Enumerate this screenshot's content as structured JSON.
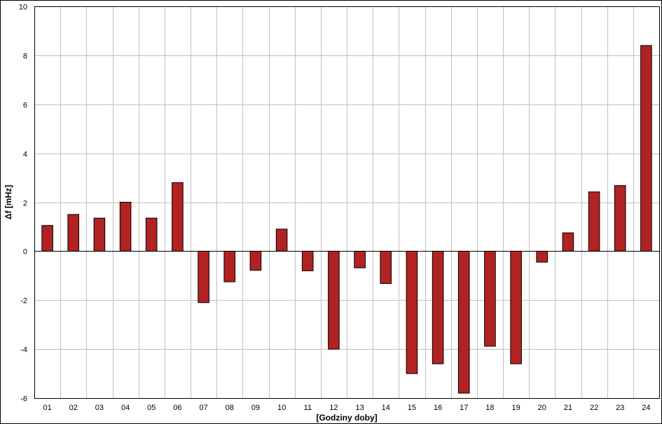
{
  "chart_data": {
    "type": "bar",
    "categories": [
      "01",
      "02",
      "03",
      "04",
      "05",
      "06",
      "07",
      "08",
      "09",
      "10",
      "11",
      "12",
      "13",
      "14",
      "15",
      "16",
      "17",
      "18",
      "19",
      "20",
      "21",
      "22",
      "23",
      "24"
    ],
    "values": [
      1.05,
      1.5,
      1.35,
      2.0,
      1.35,
      2.8,
      -2.1,
      -1.25,
      -0.78,
      0.9,
      -0.8,
      -4.0,
      -0.68,
      -1.32,
      -5.0,
      -4.6,
      -5.8,
      -3.88,
      -4.6,
      -0.45,
      0.75,
      2.42,
      2.68,
      8.4
    ],
    "title": "",
    "xlabel": "[Godziny doby]",
    "ylabel": "Δf [mHz]",
    "ylim": [
      -6,
      10
    ],
    "yticks": [
      "-6",
      "-4",
      "-2",
      "0",
      "2",
      "4",
      "6",
      "8",
      "10"
    ],
    "ytick_values": [
      -6,
      -4,
      -2,
      0,
      2,
      4,
      6,
      8,
      10
    ],
    "grid": true,
    "legend": "none",
    "bar_color": "#b22222",
    "grid_color": "#c0c0c0"
  }
}
